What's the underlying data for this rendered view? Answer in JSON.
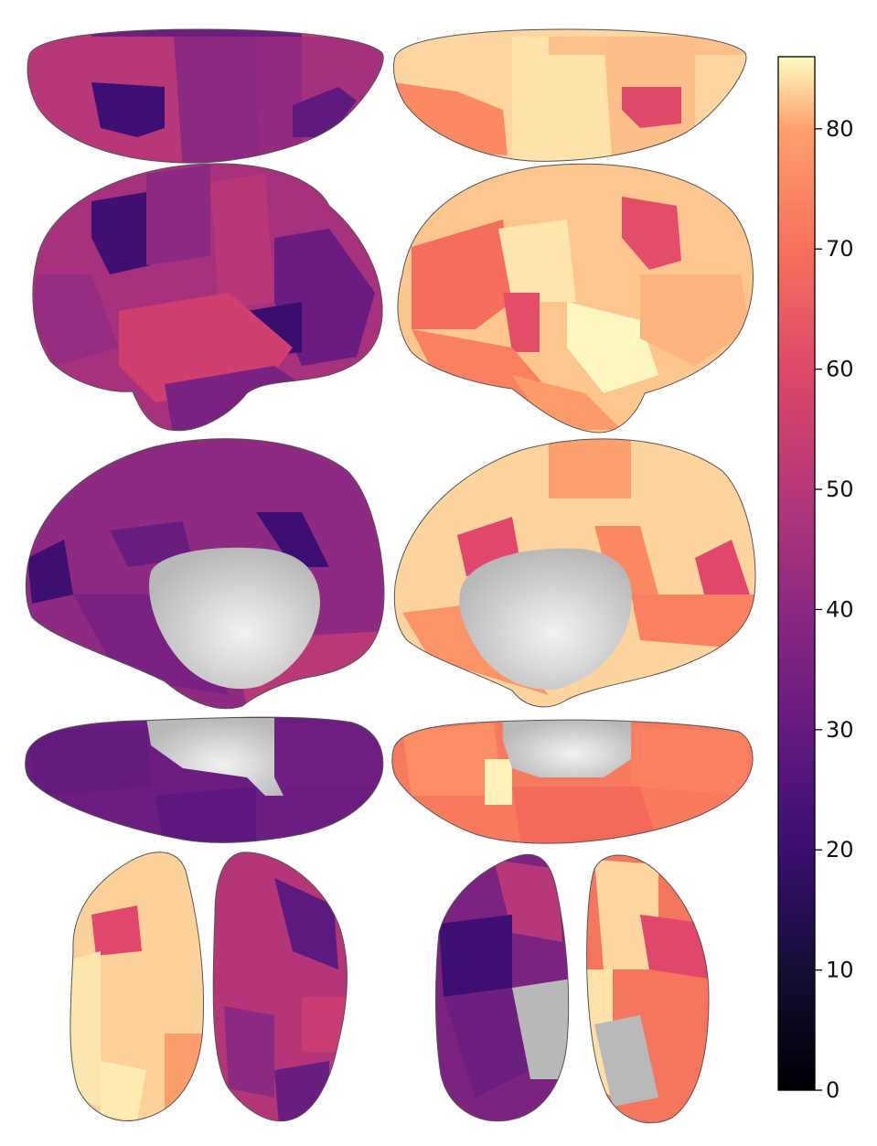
{
  "colorbar": {
    "colormap": "magma",
    "range": [
      0,
      86
    ],
    "ticks": [
      {
        "value": 0,
        "label": "0"
      },
      {
        "value": 10,
        "label": "10"
      },
      {
        "value": 20,
        "label": "20"
      },
      {
        "value": 30,
        "label": "30"
      },
      {
        "value": 40,
        "label": "40"
      },
      {
        "value": 50,
        "label": "50"
      },
      {
        "value": 60,
        "label": "60"
      },
      {
        "value": 70,
        "label": "70"
      },
      {
        "value": 80,
        "label": "80"
      }
    ]
  },
  "colors": {
    "medial_wall": "#c8c8c8",
    "outline": "#555555"
  },
  "views": [
    "superior",
    "lateral",
    "medial",
    "inferior",
    "anterior-posterior"
  ],
  "hemispheres": [
    "left",
    "right"
  ]
}
